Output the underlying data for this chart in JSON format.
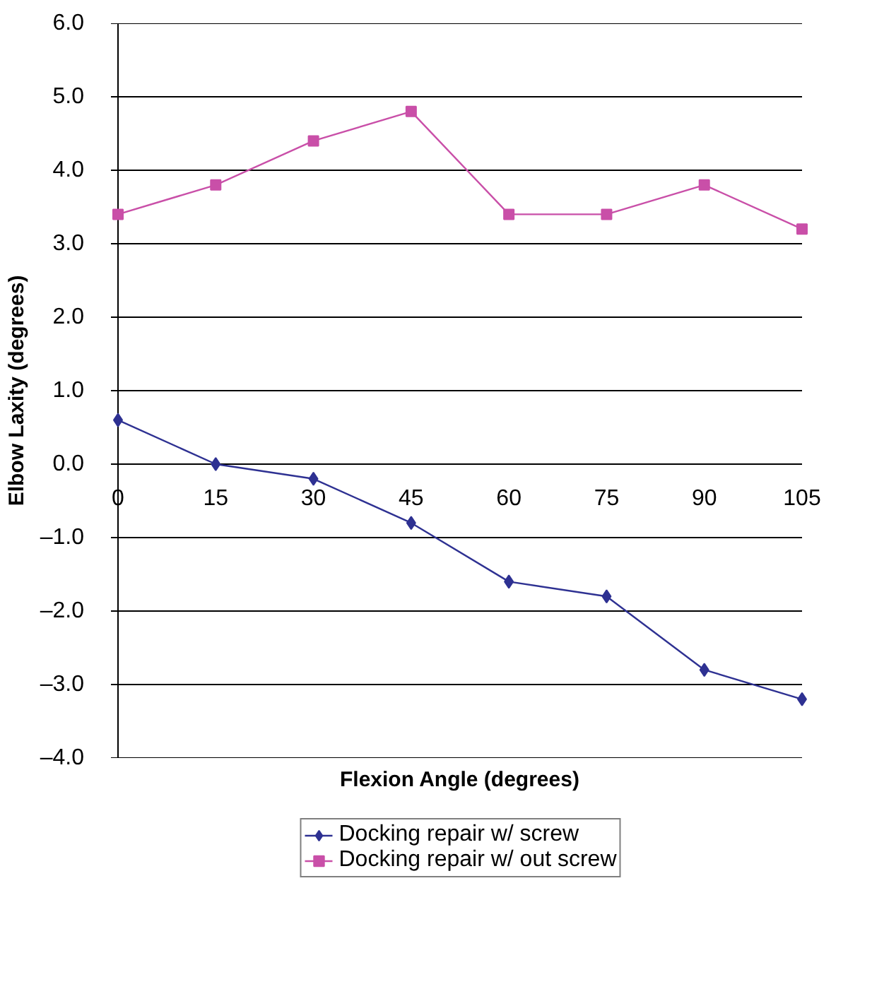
{
  "chart_data": {
    "type": "line",
    "xlabel": "Flexion Angle (degrees)",
    "ylabel": "Elbow Laxity (degrees)",
    "x": [
      0,
      15,
      30,
      45,
      60,
      75,
      90,
      105
    ],
    "series": [
      {
        "name": "Docking repair w/ screw",
        "color": "#2e3192",
        "marker": "diamond",
        "values": [
          0.6,
          0.0,
          -0.2,
          -0.8,
          -1.6,
          -1.8,
          -2.8,
          -3.2
        ]
      },
      {
        "name": "Docking repair w/ out screw",
        "color": "#c94fa8",
        "marker": "square",
        "values": [
          3.4,
          3.8,
          4.4,
          4.8,
          3.4,
          3.4,
          3.8,
          3.2
        ]
      }
    ],
    "xlim": [
      0,
      105
    ],
    "xticks": [
      0,
      15,
      30,
      45,
      60,
      75,
      90,
      105
    ],
    "ylim": [
      -4,
      6
    ],
    "yticks": [
      {
        "value": -4,
        "label": "–4.0"
      },
      {
        "value": -3,
        "label": "–3.0"
      },
      {
        "value": -2,
        "label": "–2.0"
      },
      {
        "value": -1,
        "label": "–1.0"
      },
      {
        "value": 0,
        "label": "0.0"
      },
      {
        "value": 1,
        "label": "1.0"
      },
      {
        "value": 2,
        "label": "2.0"
      },
      {
        "value": 3,
        "label": "3.0"
      },
      {
        "value": 4,
        "label": "4.0"
      },
      {
        "value": 5,
        "label": "5.0"
      },
      {
        "value": 6,
        "label": "6.0"
      }
    ],
    "grid": "y",
    "legend": "bottom",
    "line_style": "solid"
  }
}
